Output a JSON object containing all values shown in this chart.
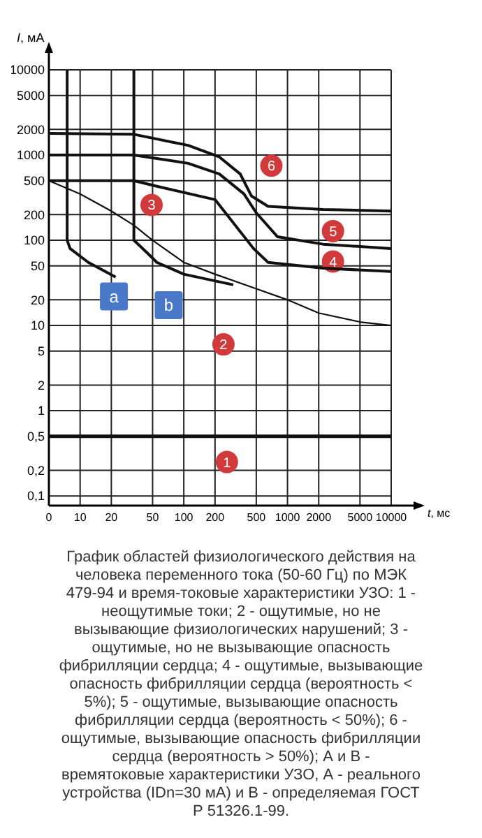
{
  "chart_data": {
    "type": "line",
    "xlabel": "t, мс",
    "ylabel": "I, мА",
    "log": "xy",
    "grid": true,
    "marker": "none",
    "line_style": "solid",
    "xlim": [
      0,
      10000
    ],
    "ylim": [
      0.077,
      10000
    ],
    "xticks": [
      0,
      10,
      20,
      50,
      100,
      200,
      500,
      1000,
      2000,
      5000,
      10000
    ],
    "yticks": [
      {
        "value": 0.1,
        "label": "0,1"
      },
      {
        "value": 0.2,
        "label": "0,2"
      },
      {
        "value": 0.5,
        "label": "0,5"
      },
      1,
      2,
      5,
      10,
      20,
      50,
      100,
      200,
      500,
      1000,
      2000,
      5000,
      10000
    ],
    "ref_lines": [
      {
        "axis": "y",
        "value": 0.5,
        "color": "#111111"
      }
    ],
    "series": [
      {
        "color": "#111111",
        "x": [
          5,
          10,
          20,
          33,
          50,
          100,
          200,
          500,
          1000,
          2000,
          5000,
          10000
        ],
        "values": [
          500,
          350,
          220,
          150,
          100,
          55,
          40,
          27,
          20,
          14,
          11,
          10
        ]
      },
      {
        "color": "#111111",
        "x": [
          5,
          33,
          55,
          200,
          470,
          650,
          2200,
          10000
        ],
        "values": [
          500,
          500,
          430,
          300,
          80,
          55,
          47,
          43
        ]
      },
      {
        "color": "#111111",
        "x": [
          5,
          33,
          110,
          220,
          380,
          500,
          800,
          2200,
          10000
        ],
        "values": [
          1000,
          1000,
          800,
          600,
          350,
          210,
          110,
          90,
          80
        ]
      },
      {
        "color": "#111111",
        "x": [
          5,
          33,
          110,
          220,
          350,
          450,
          650,
          2200,
          10000
        ],
        "values": [
          1800,
          1750,
          1300,
          950,
          600,
          330,
          250,
          230,
          220
        ]
      },
      {
        "color": "#111111",
        "x": [
          7.5,
          7.5,
          8,
          12,
          22
        ],
        "values": [
          10000,
          100,
          80,
          55,
          37
        ]
      },
      {
        "color": "#111111",
        "x": [
          33,
          33,
          45,
          55,
          100,
          300
        ],
        "values": [
          10000,
          100,
          70,
          55,
          40,
          30
        ]
      }
    ],
    "annotations": [
      "1",
      "2",
      "3",
      "4",
      "5",
      "6",
      "a",
      "b",
      "График областей физиологического действия на человека переменного тока (50-60 Гц) по МЭК 479-94 и время-токовые характеристики УЗО: 1 - неощутимые токи; 2 - ощутимые, но не вызывающие физиологических нарушений; 3 - ощутимые, но не вызывающие опасность фибрилляции сердца; 4 - ощутимые, вызывающие опасность фибрилляции сердца (вероятность < 5%); 5 - ощутимые, вызывающие опасность фибрилляции сердца (вероятность < 50%); 6 - ощутимые, вызывающие опасность фибрилляции сердца (вероятность > 50%); А и В - времятоковые характеристики УЗО, А - реального устройства (IDn=30 мА) и В - определяемая ГОСТ Р 51326.1-99."
    ]
  }
}
